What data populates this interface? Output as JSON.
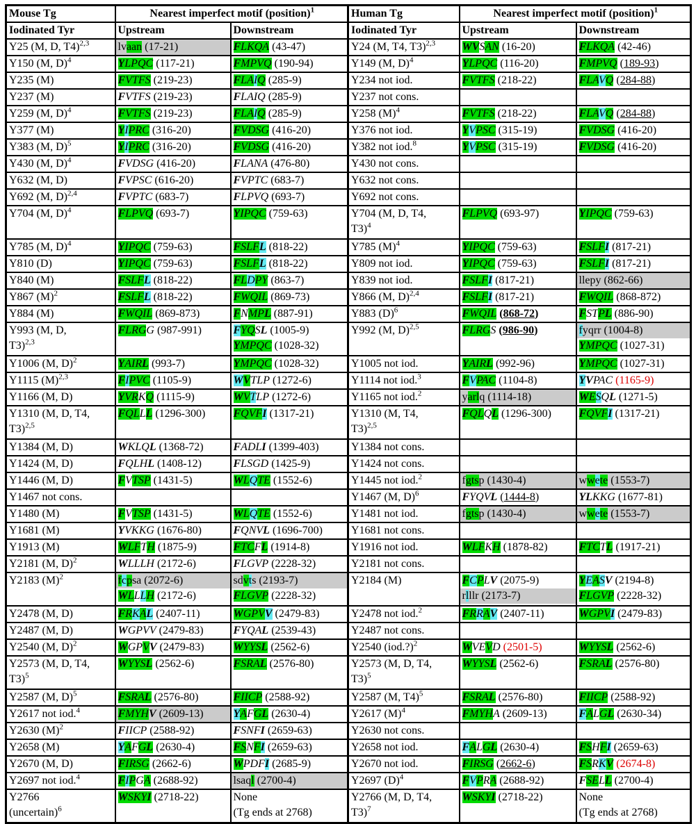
{
  "colors": {
    "green": "#00db00",
    "cyan": "#63e9f1",
    "gray": "#cbcbcb",
    "red": "#dd0000"
  },
  "header": {
    "mouse_tg": "Mouse Tg",
    "human_tg": "Human Tg",
    "motif_header": "Nearest imperfect motif (position)[s:1]",
    "iodinated_tyr": "Iodinated Tyr",
    "upstream": "Upstream",
    "downstream": "Downstream"
  },
  "rows": [
    {
      "m_tyr": [
        "Y25 (M, D, T4)[s:2,3]"
      ],
      "m_up": [
        {
          "t": "lv[g:aan] (17-21)",
          "gray": true
        }
      ],
      "m_down": [
        "[gbi:F][gi:LKQA] (43-47)"
      ],
      "h_tyr": [
        "Y24 (M, T4, T3)[s:2,3]"
      ],
      "h_up": [
        "[gbi:W][gbi:V][i:S][gi:AN] (16-20)"
      ],
      "h_down": [
        "[gbi:F][gi:LKQA] (42-46)"
      ]
    },
    {
      "m_tyr": [
        "Y150 (M, D)[s:4]"
      ],
      "m_up": [
        "[gbi:Y][gi:LPQC] (117-21)"
      ],
      "m_down": [
        "[gbi:F][gi:MPVQ] (190-94)"
      ],
      "h_tyr": [
        "Y149 (M, D)[s:4]"
      ],
      "h_up": [
        "[gbi:Y][gi:LPQC] (116-20)"
      ],
      "h_down": [
        "[gbi:F][gi:MPVQ] ([u:189-93])"
      ]
    },
    {
      "m_tyr": [
        "Y235 (M)"
      ],
      "m_up": [
        "[gbi:F][gi:VTFS] (219-23)"
      ],
      "m_down": [
        "[gbi:F][gi:LA][ci:I][gi:Q] (285-9)"
      ],
      "h_tyr": [
        "Y234 not iod."
      ],
      "h_up": [
        "[gbi:F][gi:VTFS] (218-22)"
      ],
      "h_down": [
        "[gbi:F][gi:LA][ci:V][gi:Q] ([u:284-88])"
      ]
    },
    {
      "m_tyr": [
        "Y237 (M)"
      ],
      "m_up": [
        "[bi:F][i:VTFS] (219-23)"
      ],
      "m_down": [
        "[bi:F][i:LAIQ] (285-9)"
      ],
      "h_tyr": [
        "Y237 not cons."
      ],
      "h_up": [],
      "h_down": []
    },
    {
      "m_tyr": [
        "Y259 (M, D)[s:4]"
      ],
      "m_up": [
        "[gbi:F][gi:VTFS] (219-23)"
      ],
      "m_down": [
        "[gbi:F][gi:LA][ci:I][gi:Q] (285-9)"
      ],
      "h_tyr": [
        "Y258 (M)[s:4]"
      ],
      "h_up": [
        "[gbi:F][gi:VTFS] (218-22)"
      ],
      "h_down": [
        "[gbi:F][gi:LA][ci:V][gi:Q] ([u:284-88])"
      ]
    },
    {
      "m_tyr": [
        "Y377 (M)"
      ],
      "m_up": [
        "[gbi:Y][ci:I][gi:PRC] (316-20)"
      ],
      "m_down": [
        "[gbi:F][gi:VDSG] (416-20)"
      ],
      "h_tyr": [
        "Y376 not iod."
      ],
      "h_up": [
        "[gbi:Y][ci:V][gi:PSC] (315-19)"
      ],
      "h_down": [
        "[gbi:F][gi:VDSG] (416-20)"
      ]
    },
    {
      "m_tyr": [
        "Y383 (M, D)[s:5]"
      ],
      "m_up": [
        "[gbi:Y][ci:I][gi:PRC] (316-20)"
      ],
      "m_down": [
        "[gbi:F][gi:VDSG] (416-20)"
      ],
      "h_tyr": [
        "Y382 not iod.[s:8]"
      ],
      "h_up": [
        "[gbi:Y][ci:V][gi:PSC] (315-19)"
      ],
      "h_down": [
        "[gbi:F][gi:VDSG] (416-20)"
      ]
    },
    {
      "m_tyr": [
        "Y430 (M, D)[s:4]"
      ],
      "m_up": [
        "[bi:F][i:VDSG] (416-20)"
      ],
      "m_down": [
        "[bi:F][i:LANA] (476-80)"
      ],
      "h_tyr": [
        "Y430 not cons."
      ],
      "h_up": [],
      "h_down": []
    },
    {
      "m_tyr": [
        "Y632 (M, D)"
      ],
      "m_up": [
        "[bi:F][i:VPSC] (616-20)"
      ],
      "m_down": [
        "[bi:F][i:VPTC] (683-7)"
      ],
      "h_tyr": [
        "Y632 not cons."
      ],
      "h_up": [],
      "h_down": []
    },
    {
      "m_tyr": [
        "Y692 (M, D)[s:2,4]"
      ],
      "m_up": [
        "[bi:F][i:VPTC] (683-7)"
      ],
      "m_down": [
        "[bi:F][i:LPVQ] (693-7)"
      ],
      "h_tyr": [
        "Y692 not cons."
      ],
      "h_up": [],
      "h_down": []
    },
    {
      "tall": true,
      "m_tyr": [
        "Y704 (M, D)[s:4]"
      ],
      "m_up": [
        "[gbi:F][gi:LPVQ] (693-7)"
      ],
      "m_down": [
        "[gbi:Y][gi:IPQC] (759-63)"
      ],
      "h_tyr": [
        "Y704 (M, D, T4,",
        "T3)[s:4]"
      ],
      "h_up": [
        "[gbi:F][gi:LPVQ] (693-97)"
      ],
      "h_down": [
        "[gbi:Y][gi:IPQC] (759-63)"
      ]
    },
    {
      "m_tyr": [
        "Y785 (M, D)[s:4]"
      ],
      "m_up": [
        "[gbi:Y][gi:IPQC] (759-63)"
      ],
      "m_down": [
        "[gbi:F][gi:SLF][cbi:L] (818-22)"
      ],
      "h_tyr": [
        "Y785 (M)[s:4]"
      ],
      "h_up": [
        "[gbi:Y][gi:IPQC] (759-63)"
      ],
      "h_down": [
        "[gbi:F][gi:SLF][cbi:I] (817-21)"
      ]
    },
    {
      "m_tyr": [
        "Y810 (D)"
      ],
      "m_up": [
        "[gbi:Y][gi:IPQC] (759-63)"
      ],
      "m_down": [
        "[gbi:F][gi:SLF][cbi:L] (818-22)"
      ],
      "h_tyr": [
        "Y809 not iod."
      ],
      "h_up": [
        "[gbi:Y][gi:IPQC] (759-63)"
      ],
      "h_down": [
        "[gbi:F][gi:SLF][cbi:I] (817-21)"
      ]
    },
    {
      "m_tyr": [
        "Y840 (M)"
      ],
      "m_up": [
        "[gbi:F][gi:SLF][cbi:L] (818-22)"
      ],
      "m_down": [
        "[gbi:F][gi:L][ci:D][gi:PY] (863-7)"
      ],
      "h_tyr": [
        "Y839 not iod."
      ],
      "h_up": [
        "[gbi:F][gi:SLF][cbi:I] (817-21)"
      ],
      "h_down": [
        {
          "t": "llepy (862-66)",
          "gray": true
        }
      ]
    },
    {
      "m_tyr": [
        "Y867 (M)[s:2]"
      ],
      "m_up": [
        "[gbi:F][gi:SLF][cbi:L] (818-22)"
      ],
      "m_down": [
        "[gbi:F][gi:WQIL] (869-73)"
      ],
      "h_tyr": [
        "Y866 (M, D)[s:2,4]"
      ],
      "h_up": [
        "[gbi:F][gi:SLF][cbi:I] (817-21)"
      ],
      "h_down": [
        "[gbi:F][gi:WQIL] (868-872)"
      ]
    },
    {
      "m_tyr": [
        "Y884 (M)"
      ],
      "m_up": [
        "[gbi:F][gi:WQIL] (869-873)"
      ],
      "m_down": [
        "[gbi:F][i:N][gi:MP][gbi:L] (887-91)"
      ],
      "h_tyr": [
        "Y883 (D)[s:6]"
      ],
      "h_up": [
        "[gbi:F][gi:WQIL] [b:(][bu:868-72][b:)]"
      ],
      "h_down": [
        "[gbi:F][i:ST][gi:P][gbi:L] (886-90)"
      ]
    },
    {
      "tall": true,
      "m_tyr": [
        "Y993 (M, D,",
        "T3)[s:2,3]"
      ],
      "m_up": [
        "[gbi:F][gi:LRG][i:G] (987-991)"
      ],
      "m_down": [
        "[cbi:F][gi:YQ][i:S][bi:L] (1005-9)",
        "[gbi:Y][gi:MPQC] (1028-32)"
      ],
      "h_tyr": [
        "Y992 (M, D)[s:2,5]"
      ],
      "h_up": [
        "[gbi:F][gi:LRG][i:S] [b:(][bu:986-90][b:)]"
      ],
      "h_down": [
        {
          "t": "[c:f]yqrr (1004-8)",
          "gray": true
        },
        "[gbi:Y][gi:MPQC] (1027-31)"
      ]
    },
    {
      "m_tyr": [
        "Y1006 (M, D)[s:2]"
      ],
      "m_up": [
        "[gbi:Y][gi:AIR][gbi:L] (993-7)"
      ],
      "m_down": [
        "[gbi:Y][gi:MPQC] (1028-32)"
      ],
      "h_tyr": [
        "Y1005 not iod."
      ],
      "h_up": [
        "[gbi:Y][gi:AIR][gbi:L] (992-96)"
      ],
      "h_down": [
        "[gbi:Y][gi:MPQC] (1027-31)"
      ]
    },
    {
      "m_tyr": [
        "Y1115 (M)[s:2,3]"
      ],
      "m_up": [
        "[gbi:F][ci:I][gi:PVC] (1105-9)"
      ],
      "m_down": [
        "[cbi:W][gbi:V][i:TLP] (1272-6)"
      ],
      "h_tyr": [
        "Y1114 not iod.[s:3]"
      ],
      "h_up": [
        "[gbi:F][ci:V][gi:PAC] (1104-8)"
      ],
      "h_down": [
        "[cbi:Y][bi:V][i:PAC] [r:(1165-9)]"
      ]
    },
    {
      "m_tyr": [
        "Y1166 (M, D)"
      ],
      "m_up": [
        "[gbi:Y][gi:VR][i:K][gi:Q] (1115-9)"
      ],
      "m_down": [
        "[gbi:W][gi:V][ci:T][i:LP] (1272-6)"
      ],
      "h_tyr": [
        "Y1165 not iod.[s:2]"
      ],
      "h_up": [
        {
          "t": "y[g:arl]q (1114-18)",
          "gray": true
        }
      ],
      "h_down": [
        "[gbi:W][gi:E][ci:S][i:Q][bi:L] (1271-5)"
      ]
    },
    {
      "tall": true,
      "m_tyr": [
        "Y1310 (M, D, T4,",
        "T3)[s:2,5]"
      ],
      "m_up": [
        "[gbi:F][gi:QL][i:L][gbi:L] (1296-300)"
      ],
      "m_down": [
        "[gbi:F][gi:QVF][cbi:I] (1317-21)"
      ],
      "h_tyr": [
        "Y1310 (M, T4,",
        "T3)[s:2,5]"
      ],
      "h_up": [
        "[gbi:F][gi:QL][i:Q][gbi:L] (1296-300)"
      ],
      "h_down": [
        "[gbi:F][gi:QVF][cbi:I] (1317-21)"
      ]
    },
    {
      "m_tyr": [
        "Y1384 (M, D)"
      ],
      "m_up": [
        "[bi:W][i:KLQ][bi:L] (1368-72)"
      ],
      "m_down": [
        "[bi:F][i:ADL][bi:I] (1399-403)"
      ],
      "h_tyr": [
        "Y1384 not cons."
      ],
      "h_up": [],
      "h_down": []
    },
    {
      "m_tyr": [
        "Y1424 (M, D)"
      ],
      "m_up": [
        "[bi:F][i:QLH][bi:L] (1408-12)"
      ],
      "m_down": [
        "[bi:F][i:LSGD] (1425-9)"
      ],
      "h_tyr": [
        "Y1424 not cons."
      ],
      "h_up": [],
      "h_down": []
    },
    {
      "m_tyr": [
        "Y1446 (M, D)"
      ],
      "m_up": [
        "[gbi:F][i:V][gi:TSP] (1431-5)"
      ],
      "m_down": [
        "[gbi:W][gi:L][ci:Q][gi:TE] (1552-6)"
      ],
      "h_tyr": [
        "Y1445 not iod.[s:2]"
      ],
      "h_up": [
        {
          "t": "f[g:gts]p (1430-4)",
          "gray": true
        }
      ],
      "h_down": [
        {
          "t": "w[g:w][c:e][g:te] (1553-7)",
          "gray": true
        }
      ]
    },
    {
      "m_tyr": [
        "Y1467 not cons."
      ],
      "m_up": [],
      "m_down": [],
      "h_tyr": [
        "Y1467 (M, D)[s:6]"
      ],
      "h_up": [
        "[bi:F][i:YQV][bi:L] ([u:1444-8])"
      ],
      "h_down": [
        "[bi:YL][i:KKG] (1677-81)"
      ]
    },
    {
      "m_tyr": [
        "Y1480 (M)"
      ],
      "m_up": [
        "[gbi:F][i:V][gi:TSP] (1431-5)"
      ],
      "m_down": [
        "[gbi:W][gi:L][ci:Q][gi:TE] (1552-6)"
      ],
      "h_tyr": [
        "Y1481 not iod."
      ],
      "h_up": [
        {
          "t": "f[g:gts]p (1430-4)",
          "gray": true
        }
      ],
      "h_down": [
        {
          "t": "w[g:w][c:e][g:te] (1553-7)",
          "gray": true
        }
      ]
    },
    {
      "m_tyr": [
        "Y1681 (M)"
      ],
      "m_up": [
        "[bi:Y][i:VKKG] (1676-80)"
      ],
      "m_down": [
        "[bi:F][i:QNV][bi:L] (1696-700)"
      ],
      "h_tyr": [
        "Y1681 not cons."
      ],
      "h_up": [],
      "h_down": []
    },
    {
      "m_tyr": [
        "Y1913 (M)"
      ],
      "m_up": [
        "[gbi:W][gi:LF][i:T][gi:H] (1875-9)"
      ],
      "m_down": [
        "[gbi:F][gi:TC][i:F][gbi:L] (1914-8)"
      ],
      "h_tyr": [
        "Y1916 not iod."
      ],
      "h_up": [
        "[gbi:W][gi:LF][i:K][gi:H] (1878-82)"
      ],
      "h_down": [
        "[gbi:F][gi:TC][i:T][gbi:L] (1917-21)"
      ]
    },
    {
      "m_tyr": [
        "Y2181 (M, D)[s:2]"
      ],
      "m_up": [
        "[bi:W][i:LLLH] (2172-6)"
      ],
      "m_down": [
        "[bi:F][i:LGVP] (2228-32)"
      ],
      "h_tyr": [
        "Y2181 not cons."
      ],
      "h_up": [],
      "h_down": []
    },
    {
      "tall": true,
      "m_tyr": [
        "Y2183 (M)[s:2]"
      ],
      "m_up": [
        {
          "t": "[g:f][c:c][g:p]sa (2072-6)",
          "gray": true
        },
        "[gbi:W][gi:L][i:L][ci:L][gi:H] (2172-6)"
      ],
      "m_down": [
        {
          "t": "sd[g:v][c:t]s (2193-7)",
          "gray": true
        },
        "[gbi:F][gi:LGVP] (2228-32)"
      ],
      "h_tyr": [
        "Y2184 (M)"
      ],
      "h_up": [
        "[gbi:F][ci:C][gi:P][i:L][bi:V] (2075-9)",
        {
          "t": "r[c:l]llr (2173-7)",
          "gray": true
        }
      ],
      "h_down": [
        "[gbi:Y][ci:E][gi:A][ci:S][bi:V] (2194-8)",
        "[gbi:F][gi:LGVP] (2228-32)"
      ]
    },
    {
      "m_tyr": [
        "Y2478 (M, D)"
      ],
      "m_up": [
        "[gbi:F][gi:R][ci:K][gi:A][cbi:L] (2407-11)"
      ],
      "m_down": [
        "[gbi:W][gi:GPV][cbi:V] (2479-83)"
      ],
      "h_tyr": [
        "Y2478 not iod.[s:2]"
      ],
      "h_up": [
        "[gbi:F][gi:R][ci:R][gi:A][cbi:V] (2407-11)"
      ],
      "h_down": [
        "[gbi:W][gi:GPV][cbi:I] (2479-83)"
      ]
    },
    {
      "m_tyr": [
        "Y2487 (M, D)"
      ],
      "m_up": [
        "[bi:W][i:GPVV] (2479-83)"
      ],
      "m_down": [
        "[bi:F][i:YQA][bi:L] (2539-43)"
      ],
      "h_tyr": [
        "Y2487 not cons."
      ],
      "h_up": [],
      "h_down": []
    },
    {
      "m_tyr": [
        "Y2540 (M, D)[s:2]"
      ],
      "m_up": [
        "[gbi:W][i:GP][gi:V][bi:V] (2479-83)"
      ],
      "m_down": [
        "[gbi:W][gi:YYS][gbi:L] (2562-6)"
      ],
      "h_tyr": [
        "Y2540 (iod.?)[s:2]"
      ],
      "h_up": [
        "[gbi:W][i:VE][gi:V][i:D] [r:(2501-5)]"
      ],
      "h_down": [
        "[gbi:W][gi:YYS][gbi:L]  (2562-6)"
      ]
    },
    {
      "tall": true,
      "m_tyr": [
        "Y2573 (M, D, T4,",
        "T3)[s:5]"
      ],
      "m_up": [
        "[gbi:W][gi:YYS][gbi:L] (2562-6)"
      ],
      "m_down": [
        "[gbi:F][gi:SRA][gbi:L] (2576-80)"
      ],
      "h_tyr": [
        "Y2573 (M, D, T4,",
        "T3)[s:5]"
      ],
      "h_up": [
        "[gbi:W][gi:YYS][gbi:L] (2562-6)"
      ],
      "h_down": [
        "[gbi:F][gi:SRA][gbi:L] (2576-80)"
      ]
    },
    {
      "m_tyr": [
        "Y2587 (M, D)[s:5]"
      ],
      "m_up": [
        "[gbi:F][gi:SRA][gbi:L] (2576-80)"
      ],
      "m_down": [
        "[gbi:F][gi:IICP] (2588-92)"
      ],
      "h_tyr": [
        "Y2587 (M, T4)[s:5]"
      ],
      "h_up": [
        "[gbi:F][gi:SRA][gbi:L] (2576-80)"
      ],
      "h_down": [
        "[gbi:F][gi:IICP] (2588-92)"
      ]
    },
    {
      "m_tyr": [
        "Y2617 not iod.[s:4]"
      ],
      "m_up": [
        {
          "t": "[gbi:F][gi:MYH][bi:V] (2609-13)",
          "gray": true
        }
      ],
      "m_down": [
        "[cbi:Y][gi:A][i:F][gi:G][gbi:L] (2630-4)"
      ],
      "h_tyr": [
        "Y2617 (M)[s:4]"
      ],
      "h_up": [
        "[gbi:F][gi:MYH][i:A] (2609-13)"
      ],
      "h_down": [
        "[cbi:F][gi:A][i:L][gi:G][gbi:L] (2630-34)"
      ]
    },
    {
      "m_tyr": [
        "Y2630 (M)[s:2]"
      ],
      "m_up": [
        "[bi:F][i:IICP] (2588-92)"
      ],
      "m_down": [
        "[bi:F][i:SNF][bi:I] (2659-63)"
      ],
      "h_tyr": [
        "Y2630 not cons."
      ],
      "h_up": [],
      "h_down": []
    },
    {
      "m_tyr": [
        "Y2658 (M)"
      ],
      "m_up": [
        "[cbi:Y][gi:A][i:F][gi:G][gbi:L] (2630-4)"
      ],
      "m_down": [
        "[gbi:F][gi:S][i:N][gi:F][cbi:I] (2659-63)"
      ],
      "h_tyr": [
        "Y2658 not iod."
      ],
      "h_up": [
        "[cbi:F][gi:A][i:L][gi:G][gbi:L] (2630-4)"
      ],
      "h_down": [
        "[gbi:F][gi:S][i:H][gi:F][cbi:I] (2659-63)"
      ]
    },
    {
      "m_tyr": [
        "Y2670 (M, D)"
      ],
      "m_up": [
        "[gbi:F][gi:IRSG] (2662-6)"
      ],
      "m_down": [
        "[gbi:W][i:PDF][cbi:I] (2685-9)"
      ],
      "h_tyr": [
        "Y2670 not iod."
      ],
      "h_up": [
        "[gbi:F][gi:IRSG] ([u:2662-6])"
      ],
      "h_down": [
        "[gbi:F][gi:S][i:R][ci:K][gbi:V] [r:(2674-8)]"
      ]
    },
    {
      "m_tyr": [
        "Y2697 not iod.[s:4]"
      ],
      "m_up": [
        "[gbi:F][ci:I][gi:P][i:G][gi:A] (2688-92)"
      ],
      "m_down": [
        {
          "t": "lsaq[g:l] (2700-4)",
          "gray": true
        }
      ],
      "h_tyr": [
        "Y2697 (D)[s:4]"
      ],
      "h_up": [
        "[gbi:F][ci:V][gi:P][i:R][gi:A] (2688-92)"
      ],
      "h_down": [
        "[bi:F][gi:SE][i:L][gbi:L] (2700-4)"
      ]
    },
    {
      "tall": true,
      "m_tyr": [
        "Y2766",
        "(uncertain)[s:6]"
      ],
      "m_up": [
        "[gbi:W][gi:SKY][gbi:I] (2718-22)"
      ],
      "m_down": [
        "None",
        "(Tg ends at 2768)"
      ],
      "h_tyr": [
        "Y2766 (M, D, T4,",
        "T3)[s:7]"
      ],
      "h_up": [
        "[gbi:W][gi:SKY][gbi:I] (2718-22)"
      ],
      "h_down": [
        "None",
        "(Tg ends at 2768)"
      ]
    }
  ]
}
